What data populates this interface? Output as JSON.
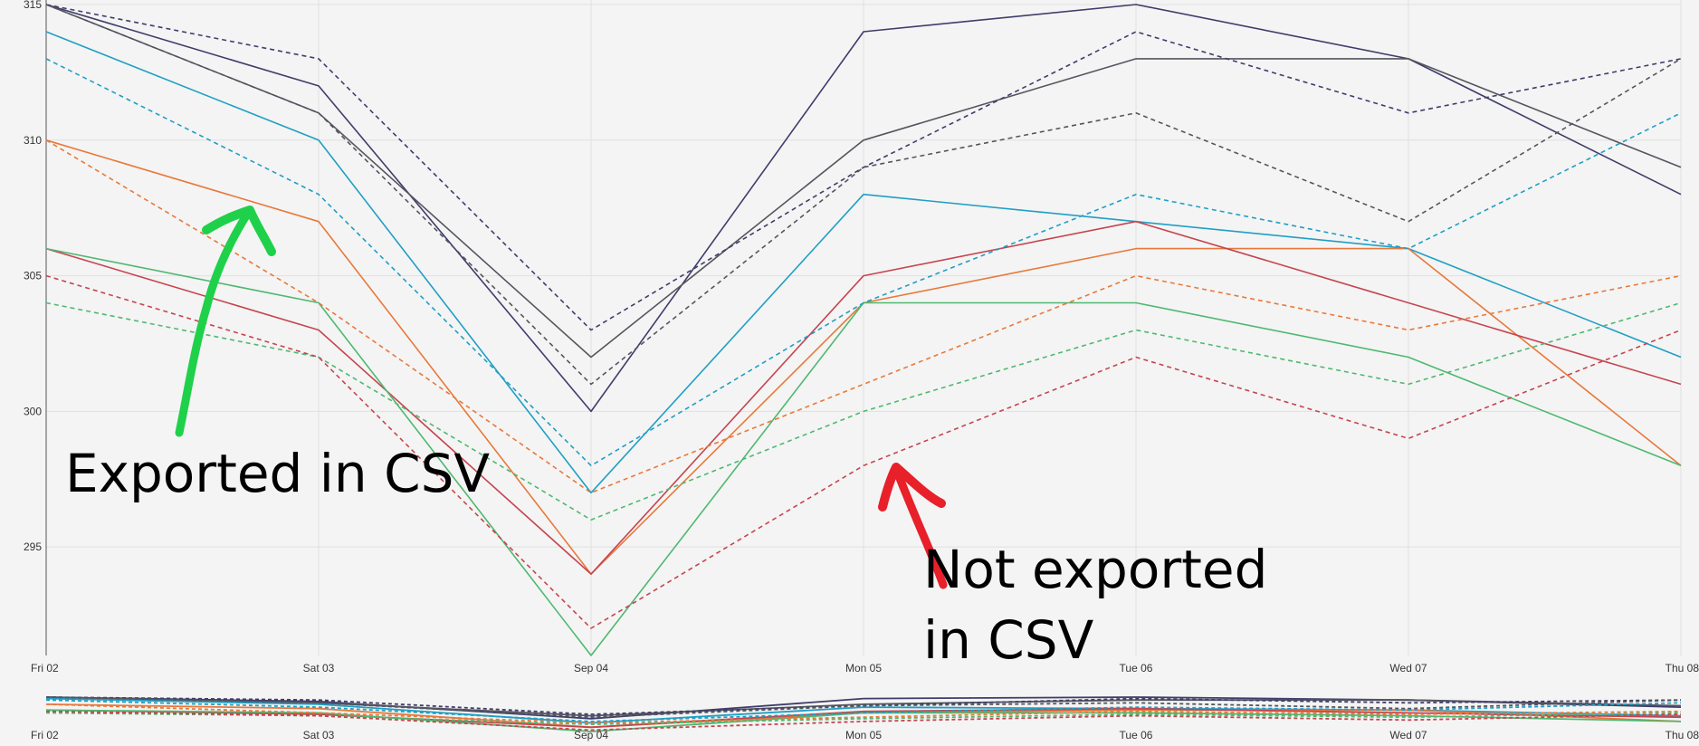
{
  "chart_data": {
    "type": "line",
    "categories": [
      "Fri 02",
      "Sat 03",
      "Sep 04",
      "Mon 05",
      "Tue 06",
      "Wed 07",
      "Thu 08"
    ],
    "ylim": [
      291,
      315
    ],
    "yticks": [
      "295",
      "300",
      "305",
      "310",
      "315"
    ],
    "grid": true,
    "series": [
      {
        "color": "#3f3d6b",
        "style": "solid",
        "values": [
          315,
          312,
          300,
          314,
          315,
          313,
          308
        ]
      },
      {
        "color": "#55555f",
        "style": "solid",
        "values": [
          315,
          311,
          302,
          310,
          313,
          313,
          309
        ]
      },
      {
        "color": "#1f9fc4",
        "style": "solid",
        "values": [
          314,
          310,
          297,
          308,
          307,
          306,
          302
        ]
      },
      {
        "color": "#e8793a",
        "style": "solid",
        "values": [
          310,
          307,
          294,
          304,
          306,
          306,
          298
        ]
      },
      {
        "color": "#c5454f",
        "style": "solid",
        "values": [
          306,
          303,
          294,
          305,
          307,
          304,
          301
        ]
      },
      {
        "color": "#4fb870",
        "style": "solid",
        "values": [
          306,
          304,
          291,
          304,
          304,
          302,
          298
        ]
      },
      {
        "color": "#3f3d6b",
        "style": "dashed",
        "values": [
          315,
          313,
          303,
          309,
          314,
          311,
          313
        ]
      },
      {
        "color": "#55555f",
        "style": "dashed",
        "values": [
          315,
          311,
          301,
          309,
          311,
          307,
          313
        ]
      },
      {
        "color": "#1f9fc4",
        "style": "dashed",
        "values": [
          313,
          308,
          298,
          304,
          308,
          306,
          311
        ]
      },
      {
        "color": "#e8793a",
        "style": "dashed",
        "values": [
          310,
          304,
          297,
          301,
          305,
          303,
          305
        ]
      },
      {
        "color": "#4fb870",
        "style": "dashed",
        "values": [
          304,
          302,
          296,
          300,
          303,
          301,
          304
        ]
      },
      {
        "color": "#c5454f",
        "style": "dashed",
        "values": [
          305,
          302,
          292,
          298,
          302,
          299,
          303
        ]
      }
    ],
    "navigator": {
      "categories": [
        "Fri 02",
        "Sat 03",
        "Sep 04",
        "Mon 05",
        "Tue 06",
        "Wed 07",
        "Thu 08"
      ]
    },
    "annotations": [
      {
        "text": "Exported in CSV",
        "color": "#000000",
        "arrow_color": "#1fd14a"
      },
      {
        "text": "Not exported in CSV",
        "color": "#000000",
        "arrow_color": "#e8202a"
      }
    ]
  }
}
